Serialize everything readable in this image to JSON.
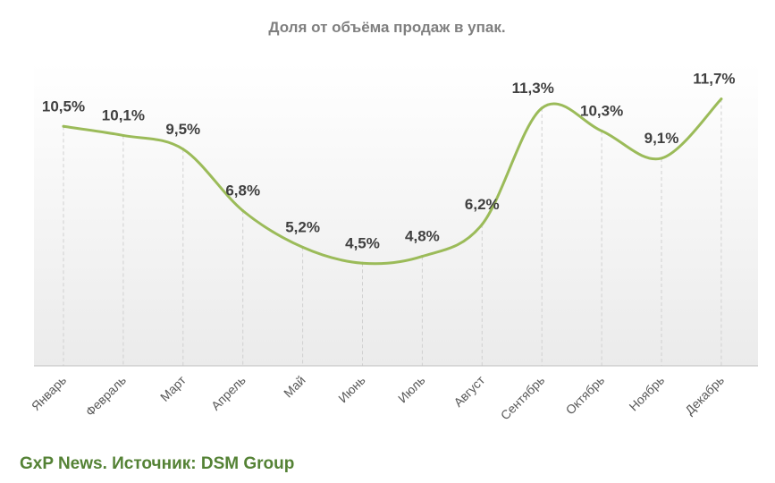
{
  "chart_data": {
    "type": "line",
    "title": "Доля от объёма продаж в упак.",
    "xlabel": "",
    "ylabel": "",
    "categories": [
      "Январь",
      "Февраль",
      "Март",
      "Апрель",
      "Май",
      "Июнь",
      "Июль",
      "Август",
      "Сентябрь",
      "Октябрь",
      "Ноябрь",
      "Декабрь"
    ],
    "series": [
      {
        "values": [
          10.5,
          10.1,
          9.5,
          6.8,
          5.2,
          4.5,
          4.8,
          6.2,
          11.3,
          10.3,
          9.1,
          11.7
        ],
        "labels": [
          "10,5%",
          "10,1%",
          "9,5%",
          "6,8%",
          "5,2%",
          "4,5%",
          "4,8%",
          "6,2%",
          "11,3%",
          "10,3%",
          "9,1%",
          "11,7%"
        ],
        "color": "#9bbb59"
      }
    ],
    "ylim": [
      0,
      14
    ],
    "smooth": true,
    "grid": "vertical-dashed",
    "legend": "none",
    "background": "gradient-light-gray"
  },
  "source_note": "GxP News. Источник: DSM Group"
}
